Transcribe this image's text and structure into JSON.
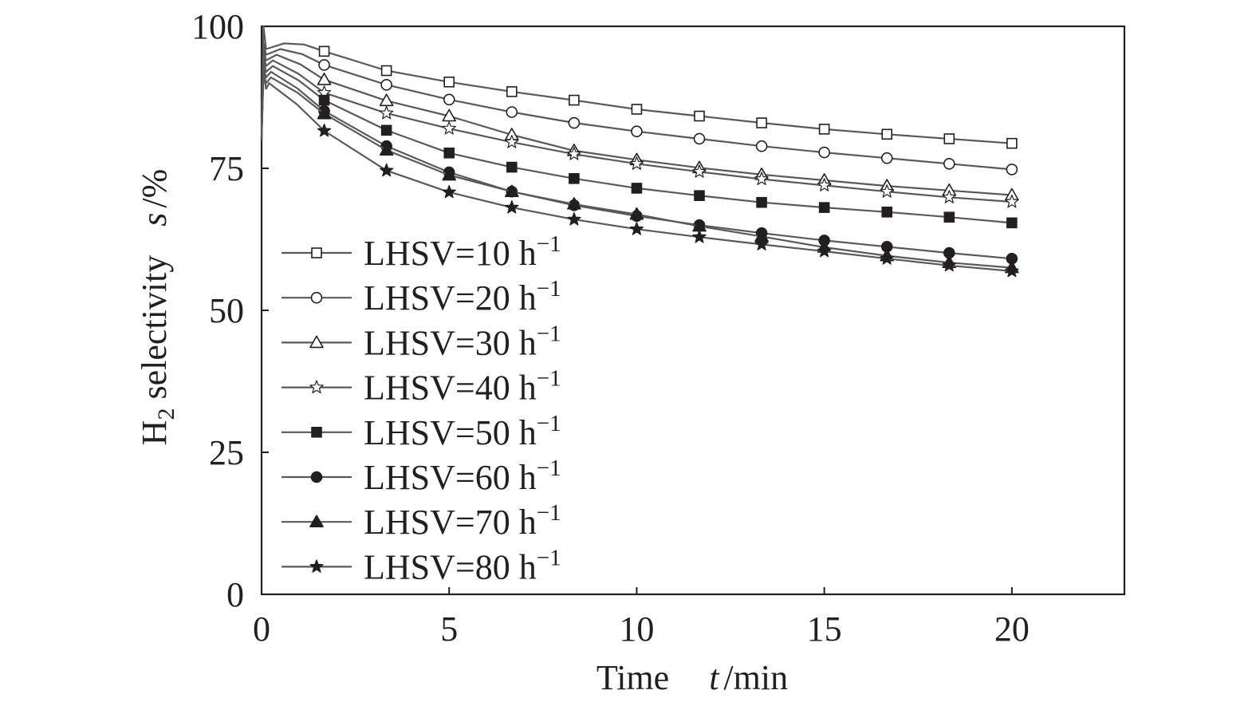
{
  "chart_data": {
    "type": "line",
    "x_axis": {
      "label_main": "Time",
      "label_symbol": "t",
      "label_unit": "/min",
      "range": [
        0,
        23
      ],
      "ticks": [
        0,
        5,
        10,
        15,
        20
      ],
      "tick_labels": [
        "0",
        "5",
        "10",
        "15",
        "20"
      ]
    },
    "y_axis": {
      "label_prefix": "H",
      "label_sub": "2",
      "label_rest": " selectivity",
      "label_symbol": "s",
      "label_unit": "/%",
      "range": [
        0,
        100
      ],
      "ticks": [
        0,
        25,
        50,
        75,
        100
      ],
      "tick_labels": [
        "0",
        "25",
        "50",
        "75",
        "100"
      ]
    },
    "grid": false,
    "legend_position": "left-middle",
    "marker_times": [
      1.67,
      3.33,
      5.0,
      6.67,
      8.33,
      10.0,
      11.67,
      13.33,
      15.0,
      16.67,
      18.33,
      20.0
    ],
    "series": [
      {
        "name_prefix": "LHSV=10 h",
        "name_sup": "−1",
        "marker": "square-open",
        "peak": 100,
        "plateau": 97,
        "plateau_end": 0.6,
        "values": [
          95.6,
          92.2,
          90.2,
          88.5,
          87.0,
          85.4,
          84.2,
          83.0,
          81.9,
          81.0,
          80.2,
          79.4
        ]
      },
      {
        "name_prefix": "LHSV=20 h",
        "name_sup": "−1",
        "marker": "circle-open",
        "peak": 97,
        "plateau": 96,
        "plateau_end": 0.5,
        "values": [
          93.2,
          89.7,
          87.1,
          84.9,
          83.0,
          81.5,
          80.2,
          78.9,
          77.8,
          76.8,
          75.8,
          74.8
        ]
      },
      {
        "name_prefix": "LHSV=30 h",
        "name_sup": "−1",
        "marker": "triangle-open",
        "peak": 96,
        "plateau": 95,
        "plateau_end": 0.4,
        "values": [
          90.6,
          86.9,
          84.2,
          80.9,
          78.1,
          76.5,
          75.1,
          73.9,
          72.9,
          71.9,
          71.1,
          70.3
        ]
      },
      {
        "name_prefix": "LHSV=40 h",
        "name_sup": "−1",
        "marker": "star-open",
        "peak": 95,
        "plateau": 94,
        "plateau_end": 0.3,
        "values": [
          88.3,
          84.7,
          82.0,
          79.6,
          77.5,
          75.8,
          74.4,
          73.1,
          72.0,
          70.9,
          69.9,
          69.1
        ]
      },
      {
        "name_prefix": "LHSV=50 h",
        "name_sup": "−1",
        "marker": "square-filled",
        "peak": 94,
        "plateau": 93,
        "plateau_end": 0.3,
        "values": [
          87.0,
          81.7,
          77.7,
          75.2,
          73.2,
          71.5,
          70.2,
          69.0,
          68.1,
          67.3,
          66.4,
          65.4
        ]
      },
      {
        "name_prefix": "LHSV=60 h",
        "name_sup": "−1",
        "marker": "circle-filled",
        "peak": 93,
        "plateau": 92,
        "plateau_end": 0.25,
        "values": [
          85.1,
          78.9,
          74.3,
          70.9,
          68.5,
          66.6,
          65.0,
          63.6,
          62.3,
          61.2,
          60.1,
          59.1
        ]
      },
      {
        "name_prefix": "LHSV=70 h",
        "name_sup": "−1",
        "marker": "triangle-filled",
        "peak": 92,
        "plateau": 91,
        "plateau_end": 0.25,
        "values": [
          84.6,
          78.2,
          73.8,
          70.9,
          68.7,
          66.9,
          64.8,
          63.0,
          61.1,
          59.6,
          58.4,
          57.5
        ]
      },
      {
        "name_prefix": "LHSV=80 h",
        "name_sup": "−1",
        "marker": "star-filled",
        "peak": 92,
        "plateau": 90,
        "plateau_end": 0.2,
        "values": [
          81.6,
          74.6,
          70.8,
          68.1,
          66.0,
          64.3,
          62.9,
          61.6,
          60.4,
          59.1,
          57.9,
          56.9
        ]
      }
    ]
  }
}
